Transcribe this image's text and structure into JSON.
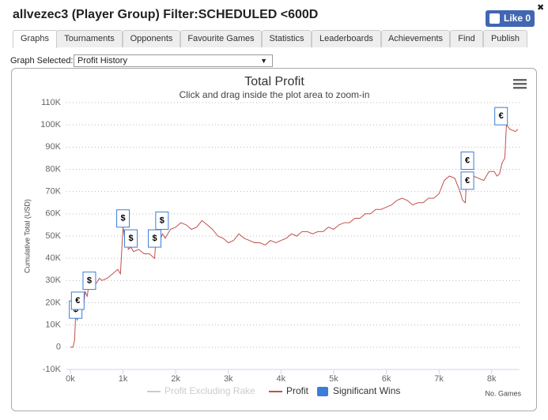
{
  "header": {
    "title": "allvezec3 (Player Group) Filter:SCHEDULED <600D",
    "like_button": "Like 0",
    "close": "✖"
  },
  "tabs": [
    "Graphs",
    "Tournaments",
    "Opponents",
    "Favourite Games",
    "Statistics",
    "Leaderboards",
    "Achievements",
    "Find",
    "Publish"
  ],
  "graph_selector": {
    "label": "Graph Selected:",
    "value": "Profit History"
  },
  "chart_data": {
    "type": "line",
    "title": "Total Profit",
    "subtitle": "Click and drag inside the plot area to zoom-in",
    "y_axis_label": "Cumulative Total (USD)",
    "x_axis_label": "No. Games",
    "xlim": [
      -75,
      8530
    ],
    "xticks": [
      {
        "value": 0,
        "label": "0k"
      },
      {
        "value": 1000,
        "label": "1k"
      },
      {
        "value": 2000,
        "label": "2k"
      },
      {
        "value": 3000,
        "label": "3k"
      },
      {
        "value": 4000,
        "label": "4k"
      },
      {
        "value": 5000,
        "label": "5k"
      },
      {
        "value": 6000,
        "label": "6k"
      },
      {
        "value": 7000,
        "label": "7k"
      },
      {
        "value": 8000,
        "label": "8k"
      }
    ],
    "ylim": [
      -10000,
      110000
    ],
    "yticks": [
      {
        "value": -10000,
        "label": "-10K"
      },
      0,
      {
        "value": 10000,
        "label": "10K"
      },
      {
        "value": 20000,
        "label": "20K"
      },
      {
        "value": 30000,
        "label": "30K"
      },
      {
        "value": 40000,
        "label": "40K"
      },
      {
        "value": 50000,
        "label": "50K"
      },
      {
        "value": 60000,
        "label": "60K"
      },
      {
        "value": 70000,
        "label": "70K"
      },
      {
        "value": 80000,
        "label": "80K"
      },
      {
        "value": 90000,
        "label": "90K"
      },
      {
        "value": 100000,
        "label": "100K"
      },
      {
        "value": 110000,
        "label": "110K"
      }
    ],
    "grid": true,
    "series": [
      {
        "name": "Profit Excluding Rake",
        "color": "#cccccc",
        "visible": false
      },
      {
        "name": "Profit",
        "color": "#c0504d",
        "x": [
          0,
          50,
          80,
          100,
          130,
          150,
          180,
          200,
          250,
          280,
          320,
          350,
          400,
          450,
          500,
          550,
          600,
          700,
          800,
          900,
          950,
          1000,
          1050,
          1080,
          1100,
          1150,
          1200,
          1300,
          1400,
          1500,
          1600,
          1620,
          1650,
          1700,
          1750,
          1800,
          1900,
          2000,
          2100,
          2200,
          2300,
          2400,
          2500,
          2600,
          2700,
          2800,
          2900,
          3000,
          3100,
          3200,
          3300,
          3400,
          3500,
          3600,
          3700,
          3800,
          3900,
          4000,
          4100,
          4200,
          4300,
          4400,
          4500,
          4600,
          4700,
          4800,
          4900,
          5000,
          5100,
          5200,
          5300,
          5400,
          5500,
          5600,
          5700,
          5800,
          5900,
          6000,
          6100,
          6200,
          6300,
          6400,
          6500,
          6600,
          6700,
          6800,
          6900,
          7000,
          7100,
          7200,
          7300,
          7400,
          7450,
          7500,
          7520,
          7550,
          7650,
          7750,
          7850,
          7950,
          8050,
          8100,
          8150,
          8200,
          8250,
          8280,
          8350,
          8450,
          8500
        ],
        "values": [
          0,
          0,
          3000,
          15000,
          12000,
          20000,
          17000,
          22000,
          18000,
          25000,
          23000,
          28000,
          26000,
          28000,
          29000,
          31000,
          30000,
          31000,
          33000,
          35000,
          33000,
          54000,
          47000,
          52000,
          44000,
          45000,
          43000,
          44000,
          42000,
          42000,
          40000,
          47000,
          49000,
          48000,
          51000,
          49000,
          53000,
          54000,
          56000,
          55000,
          53000,
          54000,
          57000,
          55000,
          53000,
          50000,
          49000,
          47000,
          48000,
          51000,
          49000,
          48000,
          47000,
          47000,
          46000,
          48000,
          47000,
          48000,
          49000,
          51000,
          50000,
          52000,
          52000,
          51000,
          52000,
          52000,
          54000,
          53000,
          55000,
          56000,
          56000,
          58000,
          58000,
          60000,
          60000,
          62000,
          62000,
          63000,
          64000,
          66000,
          67000,
          66000,
          64000,
          65000,
          65000,
          67000,
          67000,
          69000,
          75000,
          77000,
          76000,
          70000,
          66000,
          65000,
          73000,
          77000,
          77000,
          76000,
          75000,
          79000,
          79000,
          77000,
          78000,
          83000,
          85000,
          100000,
          98000,
          97000,
          98000
        ]
      },
      {
        "name": "Significant Wins",
        "color": "#3b7dd8",
        "type": "flags",
        "x": [
          100,
          140,
          360,
          1000,
          1150,
          1600,
          1740,
          7540,
          7540,
          8180
        ],
        "values": [
          13000,
          17000,
          26000,
          54000,
          45000,
          45000,
          53000,
          80000,
          71000,
          100000
        ],
        "labels": [
          "$",
          "€",
          "$",
          "$",
          "$",
          "$",
          "$",
          "€",
          "€",
          "€"
        ]
      }
    ]
  }
}
